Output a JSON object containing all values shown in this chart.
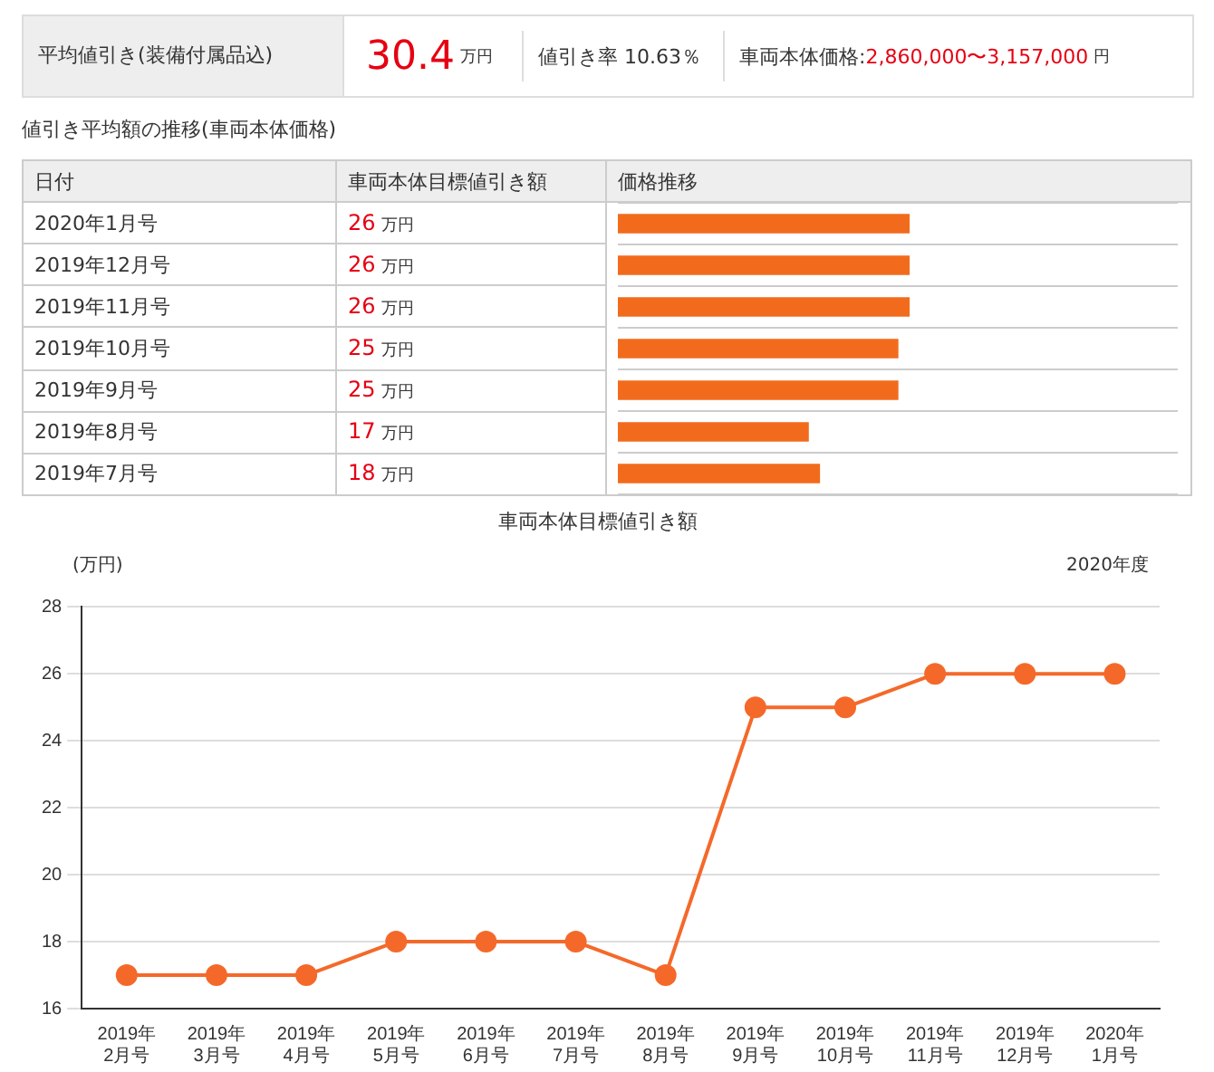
{
  "chart_data": [
    {
      "type": "other",
      "annotations": [
        "平均値引き(装備付属品込)",
        "30.4",
        "万円",
        "値引き率 10.63％",
        "車両本体価格:",
        "2,860,000〜3,157,000",
        "円"
      ]
    },
    {
      "type": "bar",
      "orientation": "horizontal",
      "title": "値引き平均額の推移(車両本体価格)",
      "ylabel": "日付",
      "annotations": [
        "車両本体目標値引き額"
      ],
      "xlabel": "価格推移",
      "categories": [
        "2020年1月号",
        "2019年12月号",
        "2019年11月号",
        "2019年10月号",
        "2019年9月号",
        "2019年8月号",
        "2019年7月号"
      ],
      "values": [
        26,
        26,
        26,
        25,
        25,
        17,
        18
      ],
      "value_labels": [
        "26 万円",
        "26 万円",
        "26 万円",
        "25 万円",
        "25 万円",
        "17 万円",
        "18 万円"
      ],
      "color": "#f26b1d",
      "xlim": [
        0,
        50
      ],
      "grid": "y",
      "tick_labels": "y",
      "legend": false
    },
    {
      "type": "line",
      "title": "車両本体目標値引き額",
      "ylabel": "(万円)",
      "annotations": [
        "2020年度"
      ],
      "categories": [
        "2019年\n2月号",
        "2019年\n3月号",
        "2019年\n4月号",
        "2019年\n5月号",
        "2019年\n6月号",
        "2019年\n7月号",
        "2019年\n8月号",
        "2019年\n9月号",
        "2019年\n10月号",
        "2019年\n11月号",
        "2019年\n12月号",
        "2020年\n1月号"
      ],
      "values": [
        17,
        17,
        17,
        18,
        18,
        18,
        17,
        25,
        25,
        26,
        26,
        26
      ],
      "color": "#f4692a",
      "ylim": [
        16,
        28
      ],
      "yticks": [
        16,
        18,
        20,
        22,
        24,
        26,
        28
      ],
      "grid": "y",
      "marker": "circle",
      "line_style": "solid",
      "legend": false
    }
  ]
}
